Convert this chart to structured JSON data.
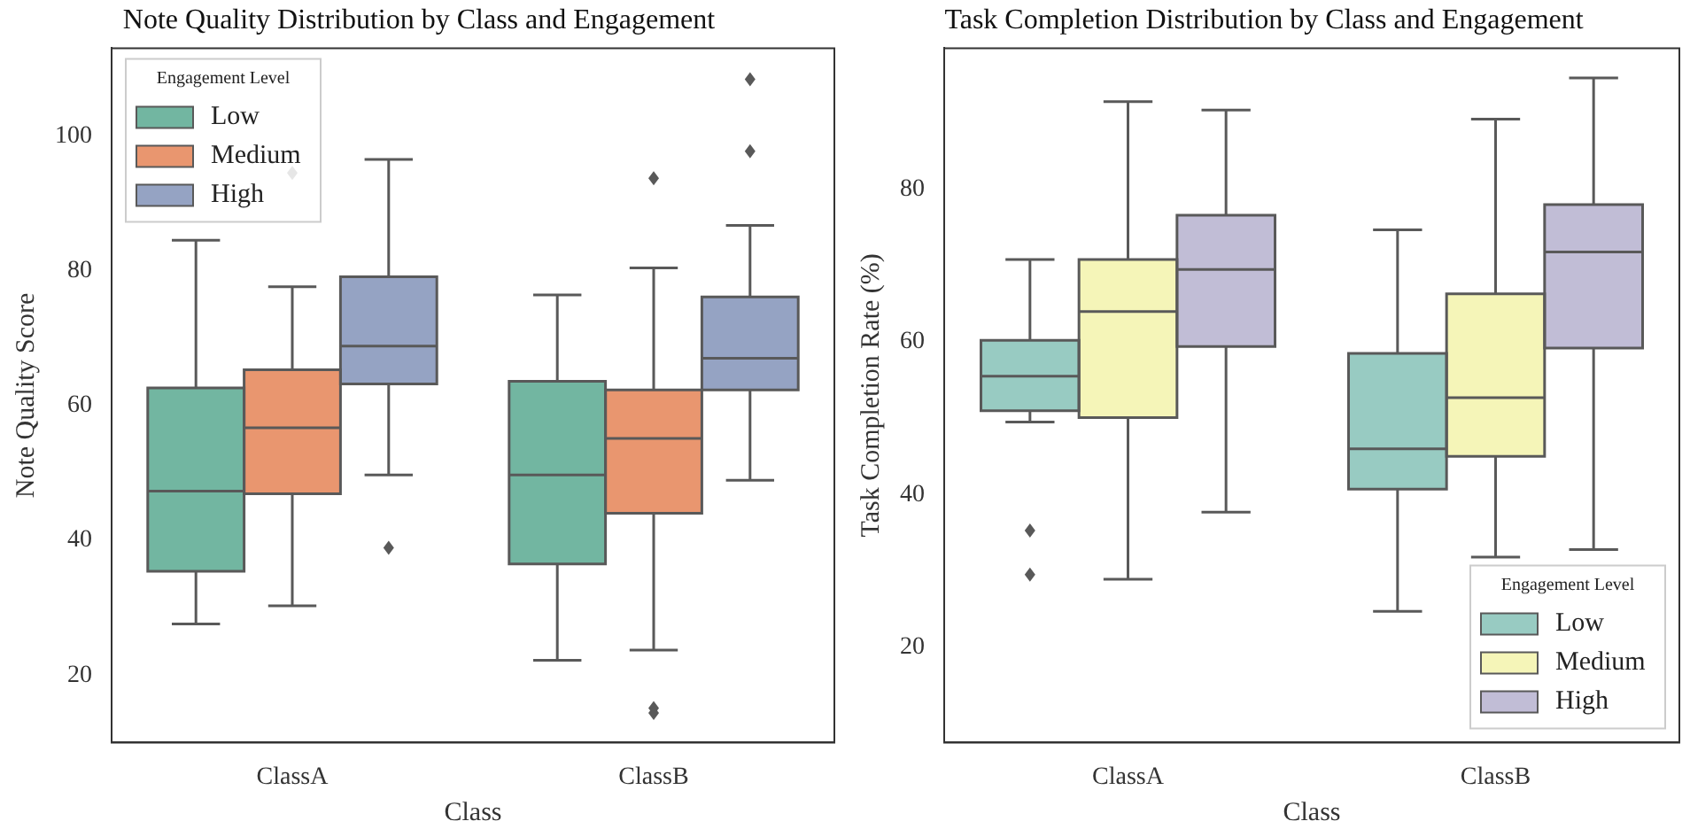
{
  "chart_data": [
    {
      "type": "box",
      "title": "Note Quality Distribution by Class and Engagement",
      "xlabel": "Class",
      "ylabel": "Note Quality Score",
      "legend_title": "Engagement Level",
      "legend": "top left",
      "categories": [
        "ClassA",
        "ClassB"
      ],
      "ylim": [
        10,
        113
      ],
      "yticks": [
        20,
        40,
        60,
        80,
        100
      ],
      "series": [
        {
          "name": "Low",
          "color": "#72b6a1",
          "boxes": [
            {
              "low": 27.6,
              "q1": 35.4,
              "median": 47.3,
              "q3": 62.6,
              "high": 84.5
            },
            {
              "low": 22.2,
              "q1": 36.5,
              "median": 49.7,
              "q3": 63.6,
              "high": 76.4
            }
          ]
        },
        {
          "name": "Medium",
          "color": "#e9966f",
          "boxes": [
            {
              "low": 30.3,
              "q1": 46.9,
              "median": 56.7,
              "q3": 65.3,
              "high": 77.6,
              "outliers": [
                94.5
              ]
            },
            {
              "low": 23.7,
              "q1": 44.0,
              "median": 55.1,
              "q3": 62.3,
              "high": 80.4,
              "outliers": [
                93.7,
                15.1,
                14.4
              ]
            }
          ]
        },
        {
          "name": "High",
          "color": "#95a3c3",
          "boxes": [
            {
              "low": 49.7,
              "q1": 63.2,
              "median": 68.8,
              "q3": 79.1,
              "high": 96.5,
              "outliers": [
                38.9
              ]
            },
            {
              "low": 48.9,
              "q1": 62.3,
              "median": 67.0,
              "q3": 76.1,
              "high": 86.7,
              "outliers": [
                108.4,
                97.7
              ]
            }
          ]
        }
      ]
    },
    {
      "type": "box",
      "title": "Task Completion Distribution by Class and Engagement",
      "xlabel": "Class",
      "ylabel": "Task Completion Rate (%)",
      "legend_title": "Engagement Level",
      "legend": "bottom right",
      "categories": [
        "ClassA",
        "ClassB"
      ],
      "ylim": [
        7.5,
        98.5
      ],
      "yticks": [
        20,
        40,
        60,
        80
      ],
      "series": [
        {
          "name": "Low",
          "color": "#98cbc2",
          "boxes": [
            {
              "low": 49.5,
              "q1": 51.0,
              "median": 55.5,
              "q3": 60.2,
              "high": 70.8,
              "outliers": [
                35.3,
                29.5
              ]
            },
            {
              "low": 24.7,
              "q1": 40.7,
              "median": 46.0,
              "q3": 58.5,
              "high": 74.7
            }
          ]
        },
        {
          "name": "Medium",
          "color": "#f5f5b8",
          "boxes": [
            {
              "low": 28.9,
              "q1": 50.1,
              "median": 64.0,
              "q3": 70.8,
              "high": 91.5
            },
            {
              "low": 31.8,
              "q1": 45.0,
              "median": 52.7,
              "q3": 66.3,
              "high": 89.2
            }
          ]
        },
        {
          "name": "High",
          "color": "#c1bdd6",
          "boxes": [
            {
              "low": 37.7,
              "q1": 59.4,
              "median": 69.5,
              "q3": 76.6,
              "high": 90.4
            },
            {
              "low": 32.8,
              "q1": 59.2,
              "median": 71.8,
              "q3": 78.0,
              "high": 94.6
            }
          ]
        }
      ]
    }
  ]
}
